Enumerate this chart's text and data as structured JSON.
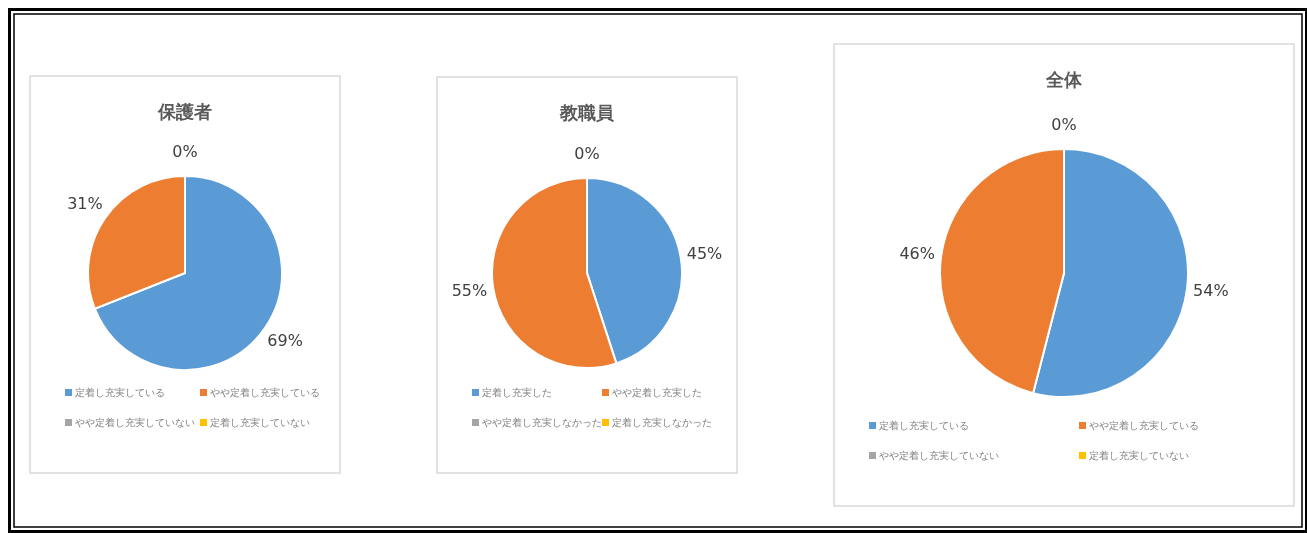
{
  "chart_data": [
    {
      "type": "pie",
      "title": "保護者",
      "categories": [
        "定着し充実している",
        "やや定着し充実している",
        "やや定着し充実していない",
        "定着し充実していない"
      ],
      "values": [
        69,
        31,
        0,
        0
      ],
      "value_labels": [
        "69%",
        "31%",
        "0%",
        null
      ],
      "colors": [
        "#5b9bd5",
        "#ed7d31",
        "#a5a5a5",
        "#ffc000"
      ],
      "legend": "bottom"
    },
    {
      "type": "pie",
      "title": "教職員",
      "categories": [
        "定着し充実した",
        "やや定着し充実した",
        "やや定着し充実しなかった",
        "定着し充実しなかった"
      ],
      "values": [
        45,
        55,
        0,
        0
      ],
      "value_labels": [
        "45%",
        "55%",
        "0%",
        null
      ],
      "colors": [
        "#5b9bd5",
        "#ed7d31",
        "#a5a5a5",
        "#ffc000"
      ],
      "legend": "bottom"
    },
    {
      "type": "pie",
      "title": "全体",
      "categories": [
        "定着し充実している",
        "やや定着し充実している",
        "やや定着し充実していない",
        "定着し充実していない"
      ],
      "values": [
        54,
        46,
        0,
        0
      ],
      "value_labels": [
        "54%",
        "46%",
        "0%",
        null
      ],
      "colors": [
        "#5b9bd5",
        "#ed7d31",
        "#a5a5a5",
        "#ffc000"
      ],
      "legend": "bottom"
    }
  ]
}
